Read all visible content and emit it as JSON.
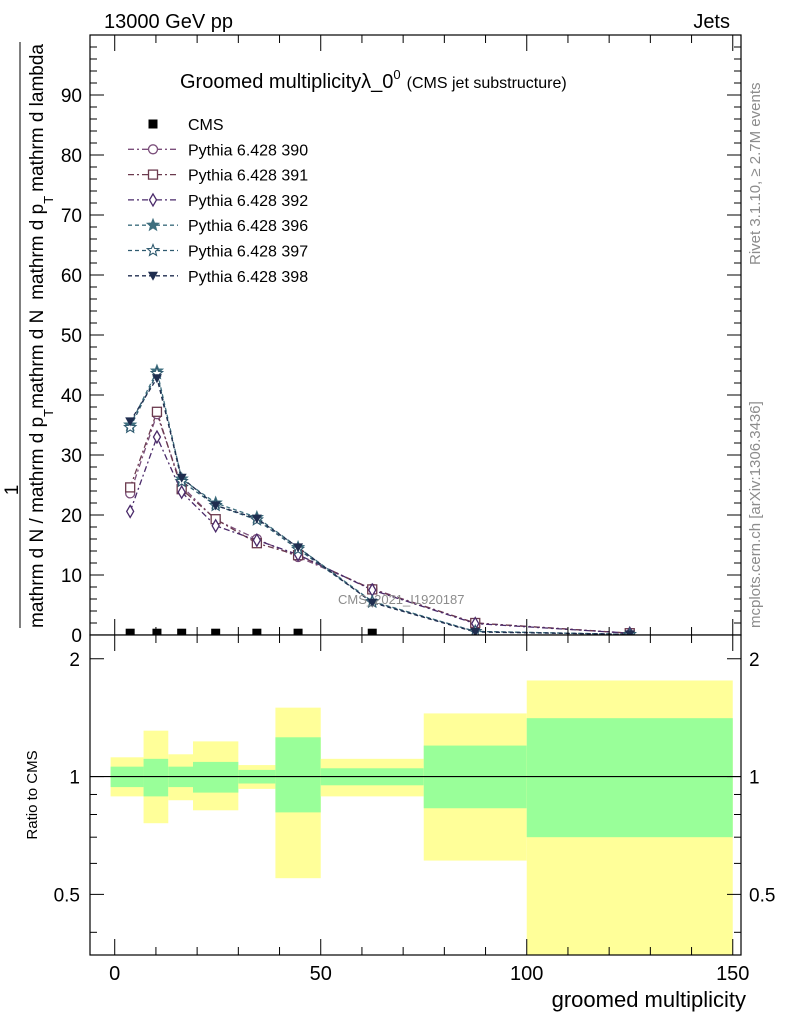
{
  "header": {
    "left": "13000 GeV pp",
    "right": "Jets"
  },
  "side_labels": {
    "rivet": "Rivet 3.1.10, ≥ 2.7M events",
    "mcplots": "mcplots.cern.ch [arXiv:1306.3436]"
  },
  "watermark": "CMS_2021_I1920187",
  "chart_data": [
    {
      "type": "line",
      "title_main": "Groomed multiplicityλ_0",
      "title_sup": "0",
      "title_sub": "(CMS jet substructure)",
      "ylabel_parts": [
        "1",
        "mathrm d N / mathrm d p",
        "T",
        "mathrm d N",
        "mathrm d p",
        "T",
        "mathrm d lambda"
      ],
      "xlim": [
        -6,
        152
      ],
      "ylim": [
        0,
        100
      ],
      "yticks": [
        0,
        10,
        20,
        30,
        40,
        50,
        60,
        70,
        80,
        90
      ],
      "legend_position": "top-left",
      "series": [
        {
          "name": "CMS",
          "marker": "filled-square",
          "color": "#000000",
          "dash": "none",
          "x": [
            3.75,
            10.25,
            16.25,
            24.5,
            34.5,
            44.5,
            62.5
          ],
          "y": [
            0.3,
            0.3,
            0.3,
            0.3,
            0.3,
            0.3,
            0.3
          ]
        },
        {
          "name": "Pythia 6.428 390",
          "marker": "open-circle",
          "color": "#7b4f7b",
          "dash": "6,3,2,3",
          "x": [
            3.75,
            10.25,
            16.25,
            24.5,
            34.5,
            44.5,
            62.5,
            87.5,
            125
          ],
          "y": [
            23.6,
            36.8,
            24.8,
            19.2,
            16.0,
            13.0,
            7.7,
            2.0,
            0.3
          ]
        },
        {
          "name": "Pythia 6.428 391",
          "marker": "open-square",
          "color": "#6b3a4e",
          "dash": "6,3,2,3",
          "x": [
            3.75,
            10.25,
            16.25,
            24.5,
            34.5,
            44.5,
            62.5,
            87.5,
            125
          ],
          "y": [
            24.6,
            37.2,
            24.3,
            19.3,
            15.3,
            13.3,
            7.6,
            2.0,
            0.3
          ]
        },
        {
          "name": "Pythia 6.428 392",
          "marker": "open-diamond",
          "color": "#4a2a6a",
          "dash": "6,3,2,3",
          "x": [
            3.75,
            10.25,
            16.25,
            24.5,
            34.5,
            44.5,
            62.5,
            87.5,
            125
          ],
          "y": [
            20.6,
            33.0,
            23.8,
            18.2,
            15.8,
            13.4,
            7.5,
            1.9,
            0.3
          ]
        },
        {
          "name": "Pythia 6.428 396",
          "marker": "filled-star",
          "color": "#3f6f7f",
          "dash": "4,3",
          "x": [
            3.75,
            10.25,
            16.25,
            24.5,
            34.5,
            44.5,
            62.5,
            87.5,
            125
          ],
          "y": [
            35.0,
            44.0,
            26.0,
            22.0,
            19.6,
            14.6,
            5.6,
            0.6,
            0.1
          ]
        },
        {
          "name": "Pythia 6.428 397",
          "marker": "open-star",
          "color": "#2f5a6f",
          "dash": "4,3",
          "x": [
            3.75,
            10.25,
            16.25,
            24.5,
            34.5,
            44.5,
            62.5,
            87.5,
            125
          ],
          "y": [
            34.6,
            43.6,
            25.6,
            21.6,
            19.2,
            14.3,
            5.5,
            0.6,
            0.1
          ]
        },
        {
          "name": "Pythia 6.428 398",
          "marker": "filled-triangle-down",
          "color": "#1f2d4f",
          "dash": "4,3",
          "x": [
            3.75,
            10.25,
            16.25,
            24.5,
            34.5,
            44.5,
            62.5,
            87.5,
            125
          ],
          "y": [
            35.6,
            42.8,
            26.2,
            21.6,
            19.4,
            14.6,
            5.4,
            0.5,
            0.1
          ]
        }
      ]
    },
    {
      "type": "area",
      "ylabel": "Ratio to CMS",
      "xlabel": "groomed multiplicity",
      "xlim": [
        -6,
        152
      ],
      "xticks": [
        0,
        50,
        100,
        150
      ],
      "ylim": [
        0.35,
        2.3
      ],
      "yscale": "log",
      "yticks": [
        0.5,
        1,
        2
      ],
      "reference_line": 1,
      "bands": [
        {
          "x0": -1,
          "x1": 7,
          "stat_lo": 0.94,
          "stat_hi": 1.06,
          "tot_lo": 0.89,
          "tot_hi": 1.12
        },
        {
          "x0": 7,
          "x1": 13,
          "stat_lo": 0.89,
          "stat_hi": 1.11,
          "tot_lo": 0.76,
          "tot_hi": 1.31
        },
        {
          "x0": 13,
          "x1": 19,
          "stat_lo": 0.94,
          "stat_hi": 1.06,
          "tot_lo": 0.87,
          "tot_hi": 1.14
        },
        {
          "x0": 19,
          "x1": 30,
          "stat_lo": 0.91,
          "stat_hi": 1.09,
          "tot_lo": 0.82,
          "tot_hi": 1.23
        },
        {
          "x0": 30,
          "x1": 39,
          "stat_lo": 0.96,
          "stat_hi": 1.04,
          "tot_lo": 0.93,
          "tot_hi": 1.07
        },
        {
          "x0": 39,
          "x1": 50,
          "stat_lo": 0.81,
          "stat_hi": 1.26,
          "tot_lo": 0.55,
          "tot_hi": 1.5
        },
        {
          "x0": 50,
          "x1": 75,
          "stat_lo": 0.95,
          "stat_hi": 1.05,
          "tot_lo": 0.89,
          "tot_hi": 1.11
        },
        {
          "x0": 75,
          "x1": 100,
          "stat_lo": 0.83,
          "stat_hi": 1.2,
          "tot_lo": 0.61,
          "tot_hi": 1.45
        },
        {
          "x0": 100,
          "x1": 150,
          "stat_lo": 0.7,
          "stat_hi": 1.41,
          "tot_lo": 0.35,
          "tot_hi": 1.76
        }
      ]
    }
  ]
}
